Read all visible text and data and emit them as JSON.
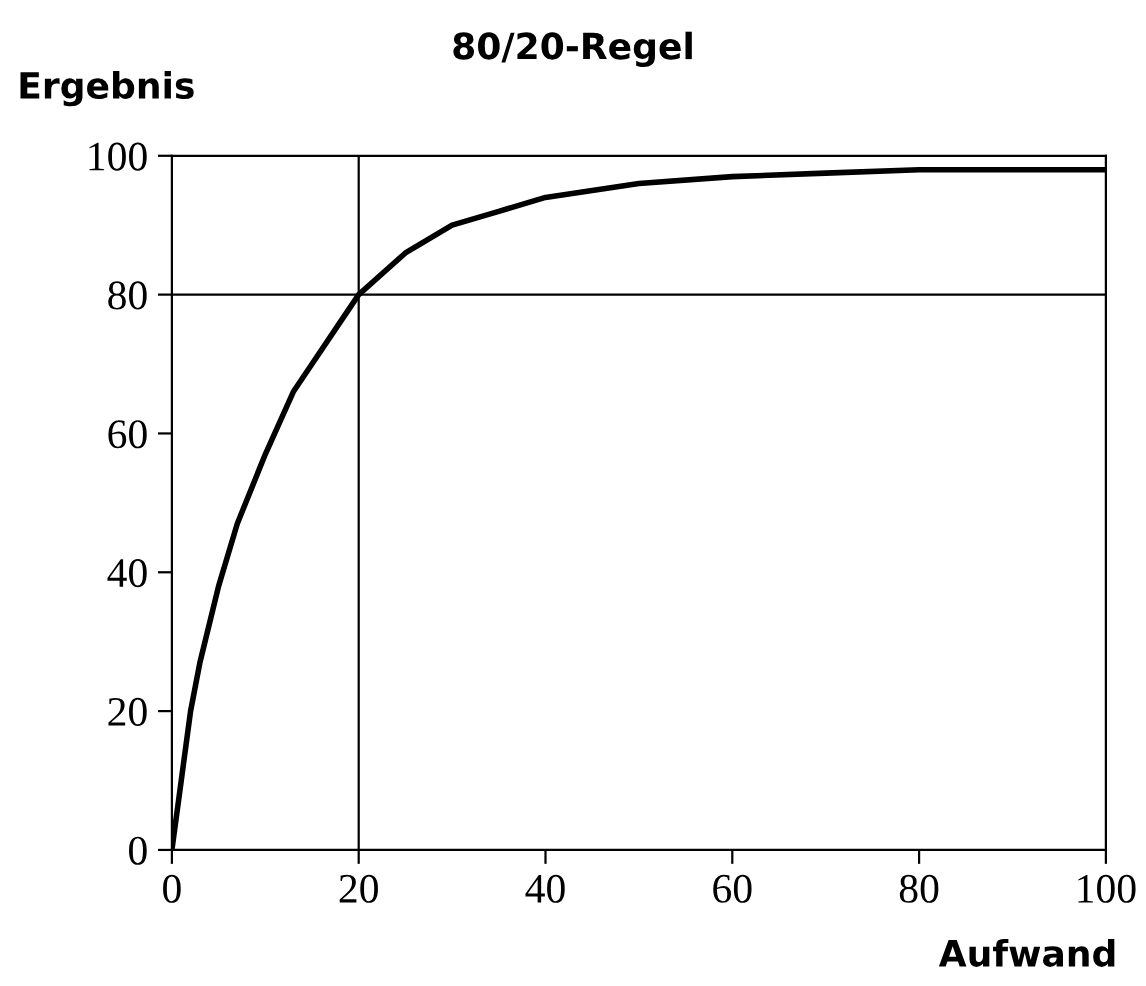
{
  "chart_data": {
    "type": "line",
    "title": "80/20-Regel",
    "xlabel": "Aufwand",
    "ylabel": "Ergebnis",
    "x": [
      0,
      1,
      2,
      3,
      5,
      7,
      10,
      13,
      15,
      18,
      20,
      25,
      30,
      35,
      40,
      50,
      60,
      70,
      80,
      90,
      100
    ],
    "series": [
      {
        "color": "#000000",
        "values": [
          0,
          10,
          20,
          27,
          38,
          47,
          57,
          66,
          70,
          76,
          80,
          86,
          90,
          92,
          94,
          96,
          97,
          97.5,
          98,
          98,
          98
        ]
      }
    ],
    "xlim": [
      0,
      100
    ],
    "ylim": [
      0,
      100
    ],
    "xticks": [
      0,
      20,
      40,
      60,
      80,
      100
    ],
    "yticks": [
      0,
      20,
      40,
      60,
      80,
      100
    ],
    "grid": false,
    "legend": false,
    "marker": "none",
    "line_style": "solid",
    "ref_lines": [
      {
        "axis": "x",
        "value": 20,
        "color": "#000000"
      },
      {
        "axis": "y",
        "value": 80,
        "color": "#000000"
      }
    ]
  }
}
